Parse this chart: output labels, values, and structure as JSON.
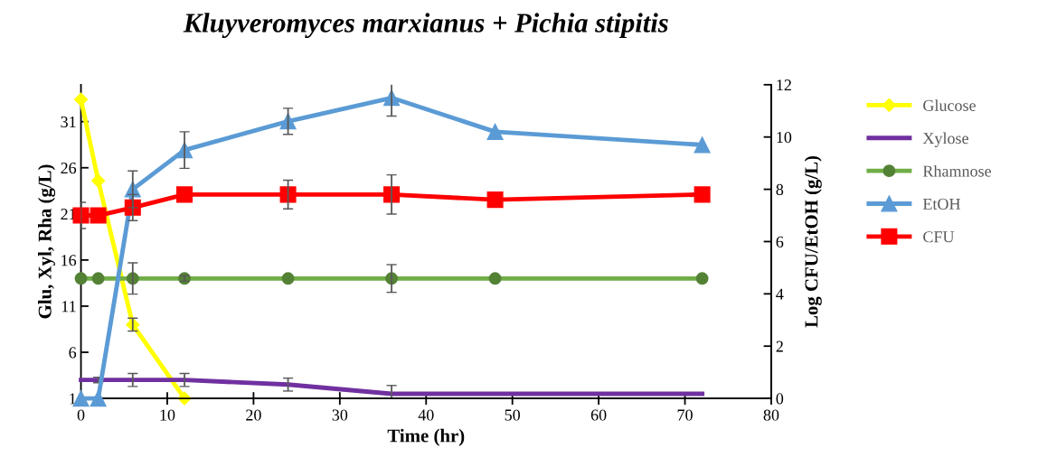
{
  "chart_data": {
    "type": "line",
    "title": "Kluyveromyces marxianus + Pichia stipitis",
    "xlabel": "Time (hr)",
    "ylabel": "Glu, Xyl, Rha (g/L)",
    "y2label": "Log CFU/EtOH (g/L)",
    "x": [
      0,
      2,
      6,
      12,
      24,
      36,
      48,
      72
    ],
    "xlim": [
      0,
      80
    ],
    "xticks": [
      0,
      10,
      20,
      30,
      40,
      50,
      60,
      70,
      80
    ],
    "ylim": [
      1,
      35
    ],
    "yticks": [
      1,
      6,
      11,
      16,
      21,
      26,
      31
    ],
    "y2lim": [
      0,
      12
    ],
    "y2ticks": [
      0,
      2,
      4,
      6,
      8,
      10,
      12
    ],
    "grid": false,
    "legend": "right",
    "series": [
      {
        "name": "Glucose",
        "color": "#ffff00",
        "marker": "diamond",
        "x": [
          0,
          2,
          6,
          12
        ],
        "values": [
          33.4,
          24.6,
          9.0,
          1
        ],
        "errors": [
          null,
          null,
          0.7,
          null
        ]
      },
      {
        "name": "Xylose",
        "color": "#7030a0",
        "marker": "none",
        "values": [
          3.0,
          3.0,
          3.0,
          3.0,
          2.5,
          1.5,
          1.5,
          1.5
        ],
        "errors": [
          null,
          0.3,
          0.7,
          0.7,
          0.7,
          0.9,
          null,
          null
        ]
      },
      {
        "name": "Rhamnose",
        "color": "#70ad47",
        "marker": "circle",
        "values": [
          14,
          14,
          14,
          14,
          14,
          14,
          14,
          14
        ],
        "errors": [
          null,
          null,
          1.7,
          0.3,
          null,
          1.5,
          null,
          null
        ]
      },
      {
        "name": "EtOH",
        "color": "#5b9bd5",
        "marker": "triangle",
        "axis": "y2",
        "values": [
          0,
          0,
          8.0,
          9.5,
          10.6,
          11.5,
          10.2,
          9.7
        ],
        "errors": [
          null,
          null,
          0.7,
          0.7,
          0.5,
          0.7,
          null,
          null
        ]
      },
      {
        "name": "CFU",
        "color": "#ff0000",
        "marker": "square",
        "axis": "y2",
        "values": [
          7.0,
          7.0,
          7.3,
          7.8,
          7.8,
          7.8,
          7.6,
          7.8
        ],
        "errors": [
          0.5,
          null,
          0.5,
          null,
          0.55,
          0.75,
          null,
          null
        ]
      }
    ]
  }
}
